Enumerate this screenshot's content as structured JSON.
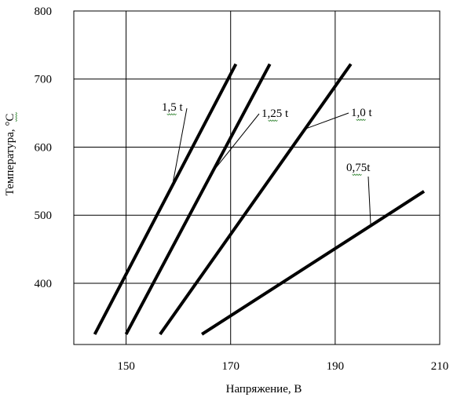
{
  "chart_data": {
    "type": "line",
    "title": "",
    "xlabel": "Напряжение, В",
    "ylabel": "Температура, °С",
    "xlim": [
      140,
      210
    ],
    "ylim": [
      310,
      800
    ],
    "xticks": [
      "150",
      "170",
      "190",
      "210"
    ],
    "yticks": [
      "400",
      "500",
      "600",
      "700",
      "800"
    ],
    "grid": true,
    "legend": "inline labels",
    "series": [
      {
        "name": "1,5 t",
        "x": [
          144,
          171
        ],
        "y": [
          325,
          722
        ]
      },
      {
        "name": "1,25 t",
        "x": [
          150,
          177.5
        ],
        "y": [
          325,
          722
        ]
      },
      {
        "name": "1,0 t",
        "x": [
          156.5,
          193
        ],
        "y": [
          325,
          722
        ]
      },
      {
        "name": "0,75t",
        "x": [
          164.5,
          207
        ],
        "y": [
          325,
          535
        ]
      }
    ],
    "line_color": "#000000"
  }
}
